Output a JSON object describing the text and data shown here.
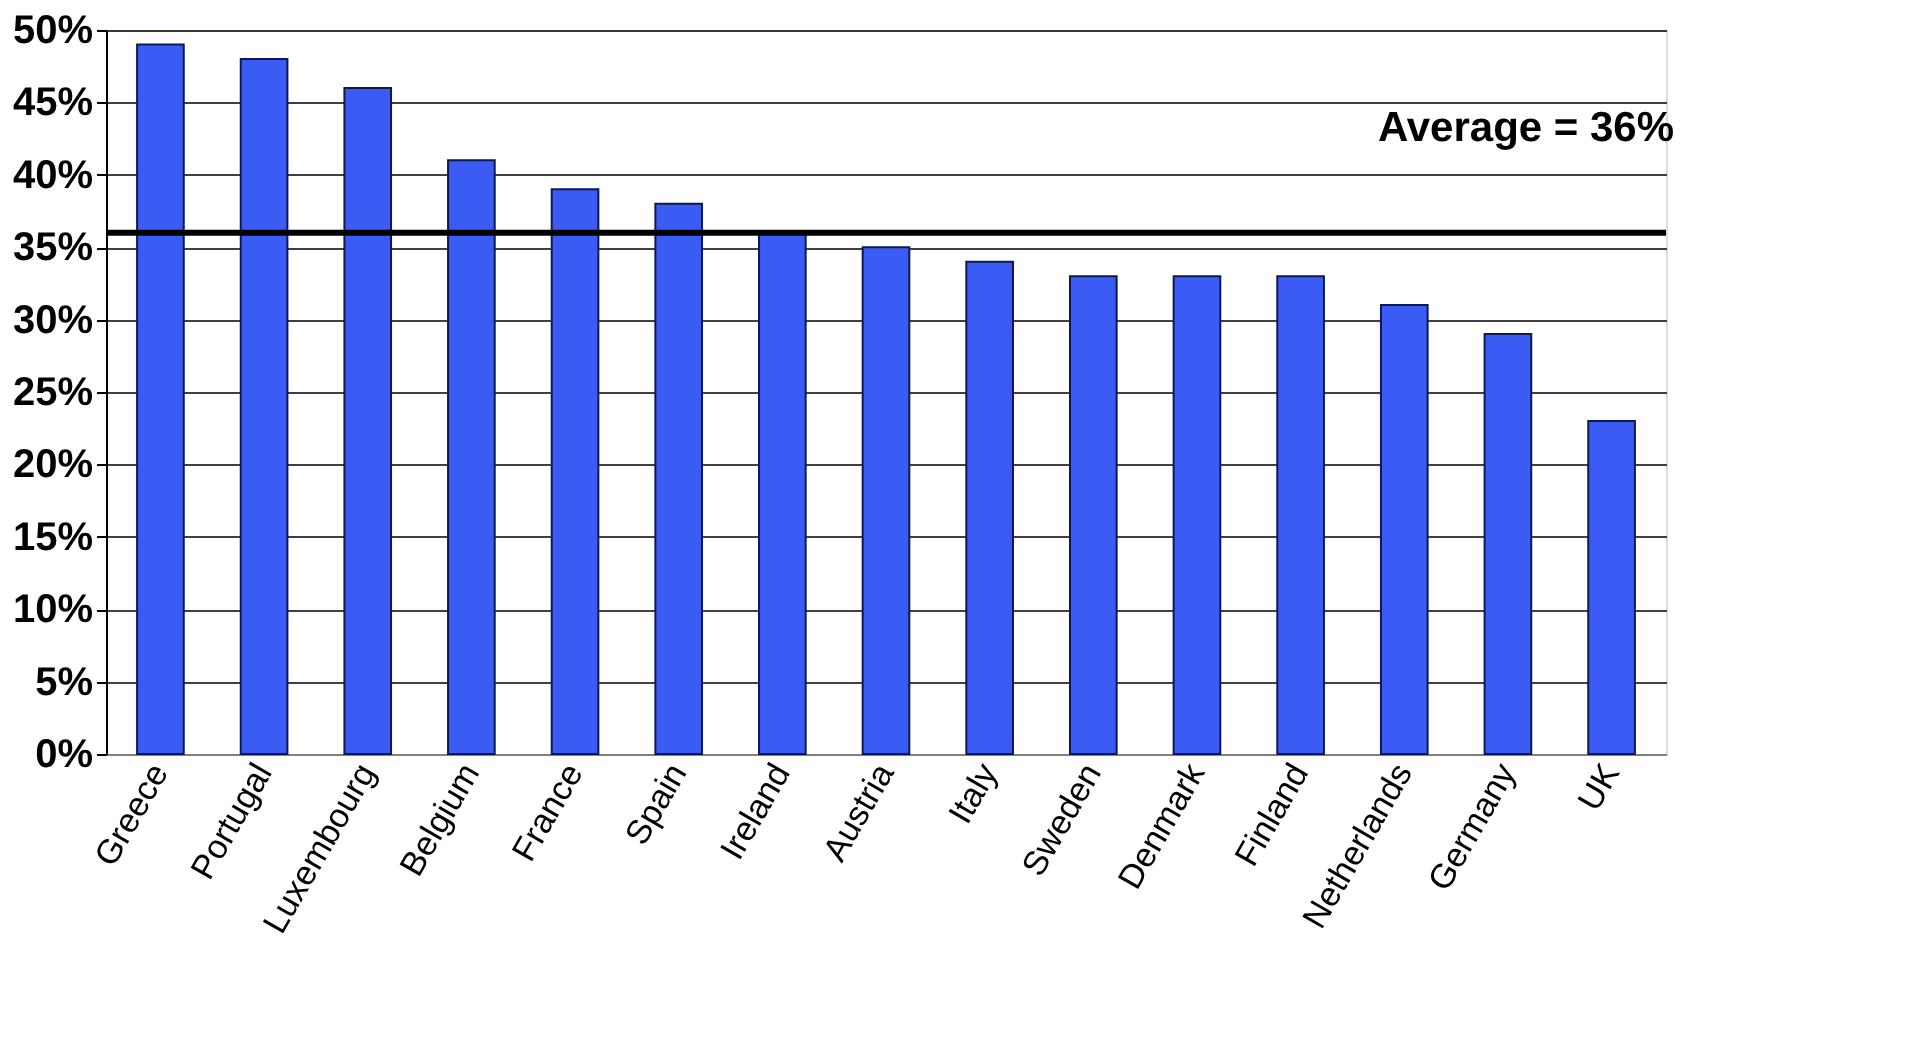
{
  "chart_data": {
    "type": "bar",
    "categories": [
      "Greece",
      "Portugal",
      "Luxembourg",
      "Belgium",
      "France",
      "Spain",
      "Ireland",
      "Austria",
      "Italy",
      "Sweden",
      "Denmark",
      "Finland",
      "Netherlands",
      "Germany",
      "UK"
    ],
    "series": [
      {
        "color": "#3a5cf5",
        "values": [
          49,
          48,
          46,
          41,
          39,
          38,
          36,
          35,
          34,
          33,
          33,
          33,
          31,
          29,
          23
        ]
      }
    ],
    "ylim": [
      0,
      50
    ],
    "yticks": [
      {
        "value": 0,
        "label": "0%"
      },
      {
        "value": 5,
        "label": "5%"
      },
      {
        "value": 10,
        "label": "10%"
      },
      {
        "value": 15,
        "label": "15%"
      },
      {
        "value": 20,
        "label": "20%"
      },
      {
        "value": 25,
        "label": "25%"
      },
      {
        "value": 30,
        "label": "30%"
      },
      {
        "value": 35,
        "label": "35%"
      },
      {
        "value": 40,
        "label": "40%"
      },
      {
        "value": 45,
        "label": "45%"
      },
      {
        "value": 50,
        "label": "50%"
      }
    ],
    "grid": "y",
    "legend": false,
    "ref_lines": [
      {
        "axis": "y",
        "value": 36,
        "label": "Average = 36%",
        "color": "#000000"
      }
    ]
  }
}
